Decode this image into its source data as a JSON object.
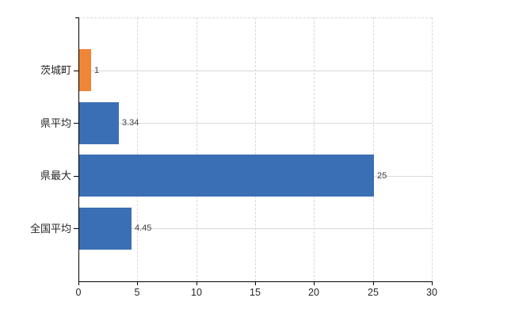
{
  "chart_data": {
    "type": "bar",
    "orientation": "horizontal",
    "title": "",
    "categories": [
      "茨城町",
      "県平均",
      "県最大",
      "全国平均"
    ],
    "values": [
      1,
      3.34,
      25,
      4.45
    ],
    "value_labels": [
      "1",
      "3.34",
      "25",
      "4.45"
    ],
    "bar_colors": [
      "#EF8536",
      "#3A6FB5",
      "#3A6FB5",
      "#3A6FB5"
    ],
    "x_ticks": [
      0,
      5,
      10,
      15,
      20,
      25,
      30
    ],
    "x_tick_labels": [
      "0",
      "5",
      "10",
      "15",
      "20",
      "25",
      "30"
    ],
    "xlim": [
      0,
      30
    ],
    "xlabel": "",
    "ylabel": "",
    "legend": "none",
    "grid": {
      "vertical_style": "dashed",
      "horizontal_style": "solid",
      "color": "#D9D9D9"
    },
    "axis_color": "#000000",
    "value_label_color": "#404040",
    "tick_label_color": "#262626",
    "background_color": "#FFFFFF"
  }
}
